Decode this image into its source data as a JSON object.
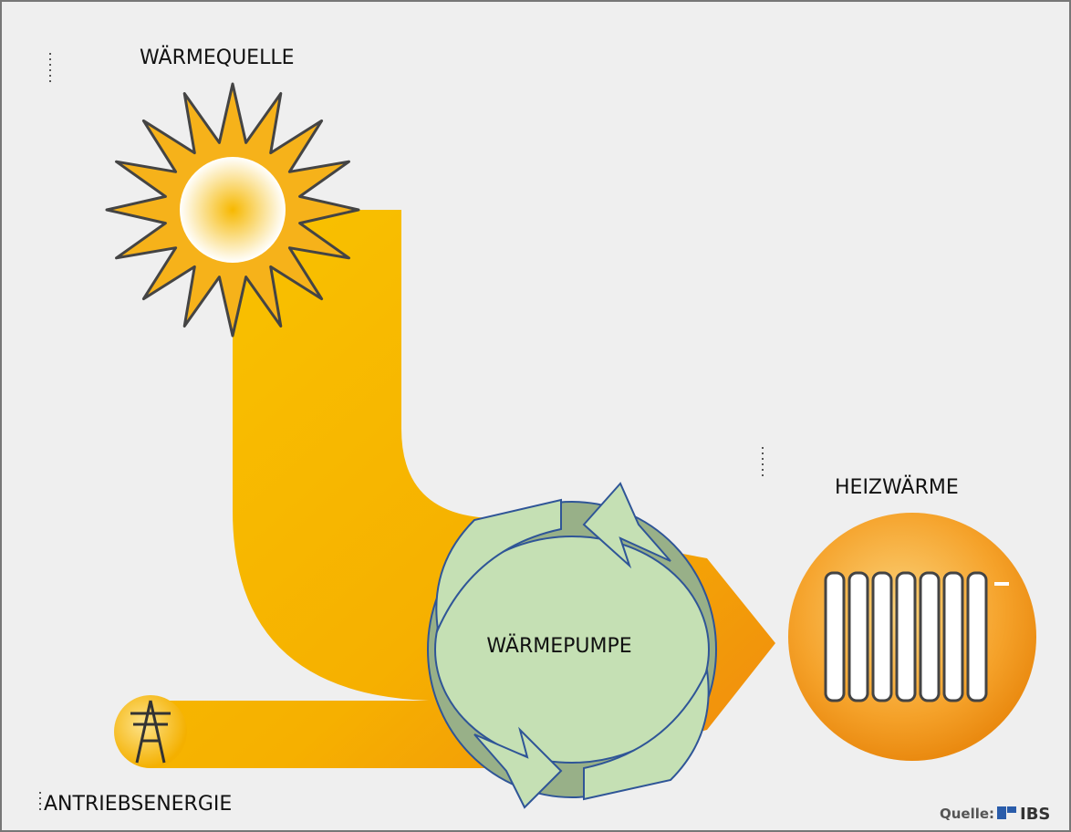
{
  "labels": {
    "heat_source": "WÄRMEQUELLE",
    "heating_heat": "HEIZWÄRME",
    "heat_pump": "WÄRMEPUMPE",
    "drive_energy": "ANTRIEBSENERGIE"
  },
  "source": {
    "prefix": "Quelle:",
    "logo": "IBS"
  }
}
